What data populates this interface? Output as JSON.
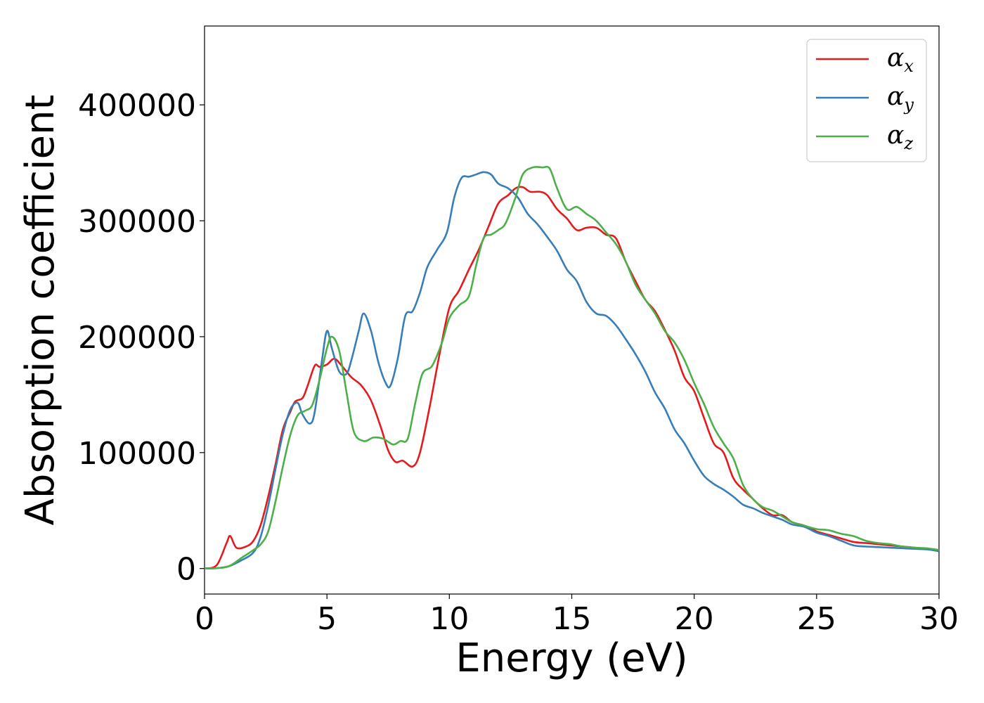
{
  "chart_data": {
    "type": "line",
    "xlabel": "Energy (eV)",
    "ylabel": "Absorption coefficient",
    "xlim": [
      0,
      30
    ],
    "ylim": [
      -22000,
      468000
    ],
    "xticks": [
      "0",
      "5",
      "10",
      "15",
      "20",
      "25",
      "30"
    ],
    "xtick_values": [
      0,
      5,
      10,
      15,
      20,
      25,
      30
    ],
    "yticks": [
      "0",
      "100000",
      "200000",
      "300000",
      "400000"
    ],
    "ytick_values": [
      0,
      100000,
      200000,
      300000,
      400000
    ],
    "grid": false,
    "legend_position": "top-right",
    "series": [
      {
        "name": "α",
        "sub": "x",
        "color": "#e41a1c",
        "points": [
          [
            0,
            0
          ],
          [
            0.5,
            3000
          ],
          [
            0.9,
            22000
          ],
          [
            1.05,
            28000
          ],
          [
            1.3,
            18000
          ],
          [
            1.7,
            19000
          ],
          [
            2.0,
            24000
          ],
          [
            2.3,
            38000
          ],
          [
            2.6,
            62000
          ],
          [
            2.9,
            90000
          ],
          [
            3.2,
            120000
          ],
          [
            3.5,
            135000
          ],
          [
            3.7,
            144000
          ],
          [
            4.0,
            147000
          ],
          [
            4.2,
            157000
          ],
          [
            4.5,
            175000
          ],
          [
            4.7,
            174000
          ],
          [
            5.0,
            176000
          ],
          [
            5.3,
            181000
          ],
          [
            5.6,
            175000
          ],
          [
            6.0,
            165000
          ],
          [
            6.4,
            158000
          ],
          [
            6.8,
            145000
          ],
          [
            7.2,
            122000
          ],
          [
            7.5,
            102000
          ],
          [
            7.8,
            92000
          ],
          [
            8.1,
            93000
          ],
          [
            8.5,
            88000
          ],
          [
            8.8,
            100000
          ],
          [
            9.2,
            140000
          ],
          [
            9.6,
            185000
          ],
          [
            10.0,
            225000
          ],
          [
            10.4,
            240000
          ],
          [
            10.8,
            258000
          ],
          [
            11.2,
            275000
          ],
          [
            11.6,
            295000
          ],
          [
            12.0,
            315000
          ],
          [
            12.4,
            322000
          ],
          [
            12.7,
            328000
          ],
          [
            13.0,
            329000
          ],
          [
            13.3,
            325000
          ],
          [
            13.7,
            325000
          ],
          [
            14.0,
            322000
          ],
          [
            14.4,
            310000
          ],
          [
            14.8,
            302000
          ],
          [
            15.2,
            292000
          ],
          [
            15.6,
            294000
          ],
          [
            16.0,
            294000
          ],
          [
            16.4,
            288000
          ],
          [
            16.8,
            285000
          ],
          [
            17.2,
            265000
          ],
          [
            17.6,
            248000
          ],
          [
            18.0,
            232000
          ],
          [
            18.4,
            222000
          ],
          [
            18.8,
            206000
          ],
          [
            19.2,
            188000
          ],
          [
            19.6,
            165000
          ],
          [
            20.0,
            153000
          ],
          [
            20.4,
            130000
          ],
          [
            20.8,
            108000
          ],
          [
            21.2,
            100000
          ],
          [
            21.6,
            78000
          ],
          [
            22.0,
            68000
          ],
          [
            22.4,
            60000
          ],
          [
            22.8,
            52000
          ],
          [
            23.2,
            46000
          ],
          [
            23.6,
            46000
          ],
          [
            24.0,
            40000
          ],
          [
            24.5,
            37000
          ],
          [
            25.0,
            32000
          ],
          [
            25.5,
            29000
          ],
          [
            26.0,
            26000
          ],
          [
            26.5,
            23000
          ],
          [
            27.0,
            22000
          ],
          [
            27.5,
            21000
          ],
          [
            28.0,
            20000
          ],
          [
            28.5,
            19000
          ],
          [
            29.0,
            18000
          ],
          [
            29.5,
            17000
          ],
          [
            30.0,
            15000
          ]
        ]
      },
      {
        "name": "α",
        "sub": "y",
        "color": "#377eb8",
        "points": [
          [
            0,
            0
          ],
          [
            0.5,
            300
          ],
          [
            1.0,
            2000
          ],
          [
            1.5,
            7000
          ],
          [
            2.0,
            14000
          ],
          [
            2.3,
            28000
          ],
          [
            2.6,
            54000
          ],
          [
            2.9,
            86000
          ],
          [
            3.2,
            116000
          ],
          [
            3.5,
            137000
          ],
          [
            3.8,
            143000
          ],
          [
            4.0,
            133000
          ],
          [
            4.3,
            125000
          ],
          [
            4.5,
            135000
          ],
          [
            4.8,
            180000
          ],
          [
            5.0,
            205000
          ],
          [
            5.2,
            190000
          ],
          [
            5.5,
            170000
          ],
          [
            5.8,
            168000
          ],
          [
            6.0,
            180000
          ],
          [
            6.3,
            205000
          ],
          [
            6.5,
            220000
          ],
          [
            6.8,
            205000
          ],
          [
            7.1,
            178000
          ],
          [
            7.4,
            160000
          ],
          [
            7.6,
            158000
          ],
          [
            7.9,
            182000
          ],
          [
            8.2,
            218000
          ],
          [
            8.5,
            222000
          ],
          [
            8.8,
            238000
          ],
          [
            9.1,
            260000
          ],
          [
            9.5,
            275000
          ],
          [
            9.9,
            290000
          ],
          [
            10.2,
            320000
          ],
          [
            10.5,
            337000
          ],
          [
            10.8,
            338000
          ],
          [
            11.1,
            340000
          ],
          [
            11.4,
            342000
          ],
          [
            11.7,
            340000
          ],
          [
            12.0,
            332000
          ],
          [
            12.4,
            328000
          ],
          [
            12.8,
            320000
          ],
          [
            13.2,
            306000
          ],
          [
            13.6,
            297000
          ],
          [
            14.0,
            286000
          ],
          [
            14.4,
            274000
          ],
          [
            14.8,
            258000
          ],
          [
            15.2,
            248000
          ],
          [
            15.6,
            230000
          ],
          [
            16.0,
            220000
          ],
          [
            16.4,
            218000
          ],
          [
            16.8,
            210000
          ],
          [
            17.2,
            198000
          ],
          [
            17.6,
            185000
          ],
          [
            18.0,
            170000
          ],
          [
            18.4,
            152000
          ],
          [
            18.8,
            138000
          ],
          [
            19.2,
            120000
          ],
          [
            19.6,
            108000
          ],
          [
            20.0,
            93000
          ],
          [
            20.4,
            80000
          ],
          [
            20.8,
            73000
          ],
          [
            21.2,
            68000
          ],
          [
            21.6,
            62000
          ],
          [
            22.0,
            55000
          ],
          [
            22.4,
            52000
          ],
          [
            22.8,
            48000
          ],
          [
            23.2,
            45000
          ],
          [
            23.6,
            42000
          ],
          [
            24.0,
            38000
          ],
          [
            24.5,
            36000
          ],
          [
            25.0,
            31000
          ],
          [
            25.5,
            28000
          ],
          [
            26.0,
            24000
          ],
          [
            26.5,
            20000
          ],
          [
            27.0,
            19000
          ],
          [
            27.5,
            18500
          ],
          [
            28.0,
            18000
          ],
          [
            28.5,
            17500
          ],
          [
            29.0,
            17000
          ],
          [
            29.5,
            16500
          ],
          [
            30.0,
            15000
          ]
        ]
      },
      {
        "name": "α",
        "sub": "z",
        "color": "#4daf4a",
        "points": [
          [
            0,
            0
          ],
          [
            0.5,
            300
          ],
          [
            1.0,
            2000
          ],
          [
            1.5,
            9000
          ],
          [
            2.0,
            16000
          ],
          [
            2.3,
            21000
          ],
          [
            2.6,
            32000
          ],
          [
            2.9,
            58000
          ],
          [
            3.2,
            88000
          ],
          [
            3.5,
            115000
          ],
          [
            3.8,
            132000
          ],
          [
            4.1,
            136000
          ],
          [
            4.4,
            141000
          ],
          [
            4.7,
            163000
          ],
          [
            5.0,
            190000
          ],
          [
            5.2,
            200000
          ],
          [
            5.5,
            188000
          ],
          [
            5.8,
            152000
          ],
          [
            6.1,
            118000
          ],
          [
            6.5,
            110000
          ],
          [
            6.9,
            113000
          ],
          [
            7.3,
            112000
          ],
          [
            7.7,
            107000
          ],
          [
            8.0,
            110000
          ],
          [
            8.3,
            112000
          ],
          [
            8.6,
            142000
          ],
          [
            8.9,
            168000
          ],
          [
            9.3,
            175000
          ],
          [
            9.7,
            195000
          ],
          [
            10.0,
            216000
          ],
          [
            10.4,
            227000
          ],
          [
            10.8,
            235000
          ],
          [
            11.1,
            262000
          ],
          [
            11.4,
            285000
          ],
          [
            11.7,
            288000
          ],
          [
            12.0,
            292000
          ],
          [
            12.3,
            298000
          ],
          [
            12.7,
            320000
          ],
          [
            13.0,
            340000
          ],
          [
            13.4,
            346000
          ],
          [
            13.8,
            346000
          ],
          [
            14.1,
            345000
          ],
          [
            14.4,
            328000
          ],
          [
            14.8,
            310000
          ],
          [
            15.2,
            312000
          ],
          [
            15.6,
            306000
          ],
          [
            16.0,
            300000
          ],
          [
            16.4,
            290000
          ],
          [
            16.8,
            280000
          ],
          [
            17.2,
            265000
          ],
          [
            17.6,
            245000
          ],
          [
            18.0,
            232000
          ],
          [
            18.4,
            220000
          ],
          [
            18.8,
            205000
          ],
          [
            19.2,
            195000
          ],
          [
            19.6,
            180000
          ],
          [
            20.0,
            160000
          ],
          [
            20.4,
            142000
          ],
          [
            20.8,
            122000
          ],
          [
            21.2,
            108000
          ],
          [
            21.6,
            95000
          ],
          [
            22.0,
            72000
          ],
          [
            22.4,
            60000
          ],
          [
            22.8,
            53000
          ],
          [
            23.2,
            50000
          ],
          [
            23.6,
            45000
          ],
          [
            24.0,
            40000
          ],
          [
            24.5,
            37000
          ],
          [
            25.0,
            34000
          ],
          [
            25.5,
            33000
          ],
          [
            26.0,
            30000
          ],
          [
            26.5,
            28000
          ],
          [
            27.0,
            24000
          ],
          [
            27.5,
            22000
          ],
          [
            28.0,
            21000
          ],
          [
            28.5,
            19000
          ],
          [
            29.0,
            18000
          ],
          [
            29.5,
            17500
          ],
          [
            30.0,
            16000
          ]
        ]
      }
    ]
  }
}
